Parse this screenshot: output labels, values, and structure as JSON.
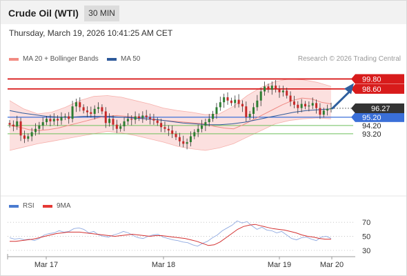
{
  "header": {
    "title": "Crude Oil (WTI)",
    "timeframe": "30 MIN"
  },
  "datetime": "Thursday, March 19, 2026 10:41:25 AM CET",
  "legend": {
    "bollinger": {
      "label": "MA 20 + Bollinger Bands",
      "color": "#f28b82"
    },
    "ma50": {
      "label": "MA 50",
      "color": "#2e5a9a"
    },
    "credit": "Research © 2026 Trading Central"
  },
  "rsi_legend": {
    "rsi": {
      "label": "RSI",
      "color": "#4a7bd0"
    },
    "ma9": {
      "label": "9MA",
      "color": "#e53935"
    }
  },
  "chart_data": [
    {
      "type": "candlestick",
      "title": "",
      "xlabel": "",
      "ylabel": "",
      "x_ticks": [
        "Mar 17",
        "Mar 18",
        "Mar 19",
        "Mar 20"
      ],
      "y_range": [
        86.05,
        101.25
      ],
      "grid": false,
      "current_price": 96.27,
      "levels": [
        {
          "value": 99.8,
          "label": "99.80",
          "style": "resistance",
          "color": "#d81b1b"
        },
        {
          "value": 98.6,
          "label": "98.60",
          "style": "resistance",
          "color": "#d81b1b"
        },
        {
          "value": 95.2,
          "label": "95.20",
          "style": "pivot",
          "color": "#3a6fd8"
        },
        {
          "value": 94.2,
          "label": "94.20",
          "style": "support",
          "color": "#6cbf5a"
        },
        {
          "value": 93.2,
          "label": "93.20",
          "style": "support",
          "color": "#6cbf5a"
        }
      ],
      "forecast": {
        "from": 96.27,
        "to": 99.8,
        "color": "#2f5f9e"
      },
      "series": [
        {
          "name": "Price",
          "kind": "close",
          "values": [
            94.3,
            94.1,
            94.7,
            93.0,
            92.6,
            92.9,
            93.4,
            93.8,
            94.2,
            94.6,
            95.0,
            94.7,
            95.0,
            94.8,
            95.2,
            95.3,
            95.0,
            96.5,
            97.0,
            96.4,
            96.0,
            95.8,
            95.6,
            96.2,
            96.4,
            95.9,
            94.5,
            95.0,
            94.3,
            93.8,
            94.1,
            94.7,
            95.0,
            94.9,
            95.3,
            95.1,
            95.4,
            95.2,
            95.0,
            94.8,
            94.5,
            94.0,
            93.8,
            93.6,
            93.2,
            92.8,
            92.3,
            92.0,
            92.2,
            92.9,
            93.4,
            93.8,
            94.2,
            94.6,
            95.0,
            95.6,
            96.4,
            97.0,
            97.6,
            97.2,
            96.9,
            97.3,
            96.8,
            96.5,
            95.2,
            95.6,
            96.4,
            97.2,
            98.3,
            98.9,
            98.5,
            99.0,
            98.6,
            98.2,
            98.4,
            97.8,
            97.1,
            96.7,
            96.3,
            96.8,
            96.5,
            96.6,
            96.9,
            96.3,
            95.5,
            96.0,
            96.2,
            96.27
          ]
        },
        {
          "name": "MA 20",
          "kind": "line",
          "values": [
            94.2,
            94.0,
            93.7,
            93.6,
            93.7,
            93.9,
            94.2,
            94.5,
            94.8,
            95.1,
            95.3,
            95.4,
            95.3,
            95.2,
            95.0,
            94.9,
            94.8,
            94.7,
            94.6,
            94.5,
            94.4,
            94.1,
            93.9,
            93.8,
            94.3,
            94.9,
            95.5,
            96.1,
            96.7,
            97.2,
            97.5,
            97.4,
            97.0,
            96.8
          ]
        },
        {
          "name": "MA 50",
          "kind": "line",
          "values": [
            96.0,
            95.7,
            95.5,
            95.3,
            95.2,
            95.2,
            95.3,
            95.3,
            95.3,
            95.2,
            95.1,
            95.0,
            94.9,
            94.7,
            94.5,
            94.4,
            94.3,
            94.3,
            94.4,
            94.6,
            94.9,
            95.2,
            95.5,
            95.8,
            96.0,
            96.1,
            96.2
          ]
        },
        {
          "name": "Bollinger Upper",
          "kind": "band",
          "values": [
            97.2,
            96.2,
            95.6,
            95.8,
            96.4,
            97.2,
            97.7,
            97.8,
            97.6,
            97.2,
            96.8,
            96.3,
            96.0,
            95.8,
            95.5,
            95.6,
            96.5,
            97.8,
            98.8,
            99.5,
            99.8,
            99.7,
            99.4,
            98.9
          ]
        },
        {
          "name": "Bollinger Lower",
          "kind": "band",
          "values": [
            91.2,
            91.6,
            92.0,
            92.3,
            92.6,
            92.9,
            93.2,
            93.5,
            93.3,
            93.0,
            92.6,
            92.2,
            91.7,
            91.4,
            91.2,
            91.5,
            92.0,
            92.8,
            93.6,
            94.4,
            94.8,
            95.0,
            95.1,
            95.0
          ]
        }
      ]
    },
    {
      "type": "line",
      "title": "",
      "x_ticks": [
        "Mar 17",
        "Mar 18",
        "Mar 19",
        "Mar 20"
      ],
      "y_ticks": [
        70,
        50,
        30
      ],
      "y_range": [
        25,
        80
      ],
      "grid": true,
      "series": [
        {
          "name": "RSI",
          "values": [
            48,
            46,
            47,
            45,
            46,
            44,
            47,
            52,
            54,
            55,
            58,
            56,
            57,
            61,
            62,
            60,
            55,
            57,
            52,
            50,
            49,
            52,
            54,
            57,
            55,
            51,
            48,
            47,
            50,
            52,
            53,
            49,
            47,
            45,
            44,
            42,
            41,
            38,
            36,
            40,
            43,
            48,
            52,
            58,
            62,
            66,
            72,
            69,
            71,
            65,
            60,
            63,
            59,
            58,
            55,
            57,
            52,
            47,
            45,
            48,
            49,
            46,
            44,
            49,
            50,
            47
          ]
        },
        {
          "name": "9MA",
          "values": [
            43,
            43,
            44,
            45,
            46,
            48,
            50,
            52,
            54,
            55,
            56,
            56,
            56,
            55,
            54,
            53,
            52,
            51,
            50,
            51,
            52,
            53,
            52,
            51,
            50,
            51,
            51,
            50,
            49,
            48,
            47,
            45,
            43,
            40,
            37,
            38,
            42,
            48,
            54,
            60,
            64,
            66,
            67,
            65,
            63,
            61,
            60,
            59,
            57,
            55,
            52,
            50,
            49,
            47,
            46,
            46
          ]
        }
      ]
    }
  ]
}
